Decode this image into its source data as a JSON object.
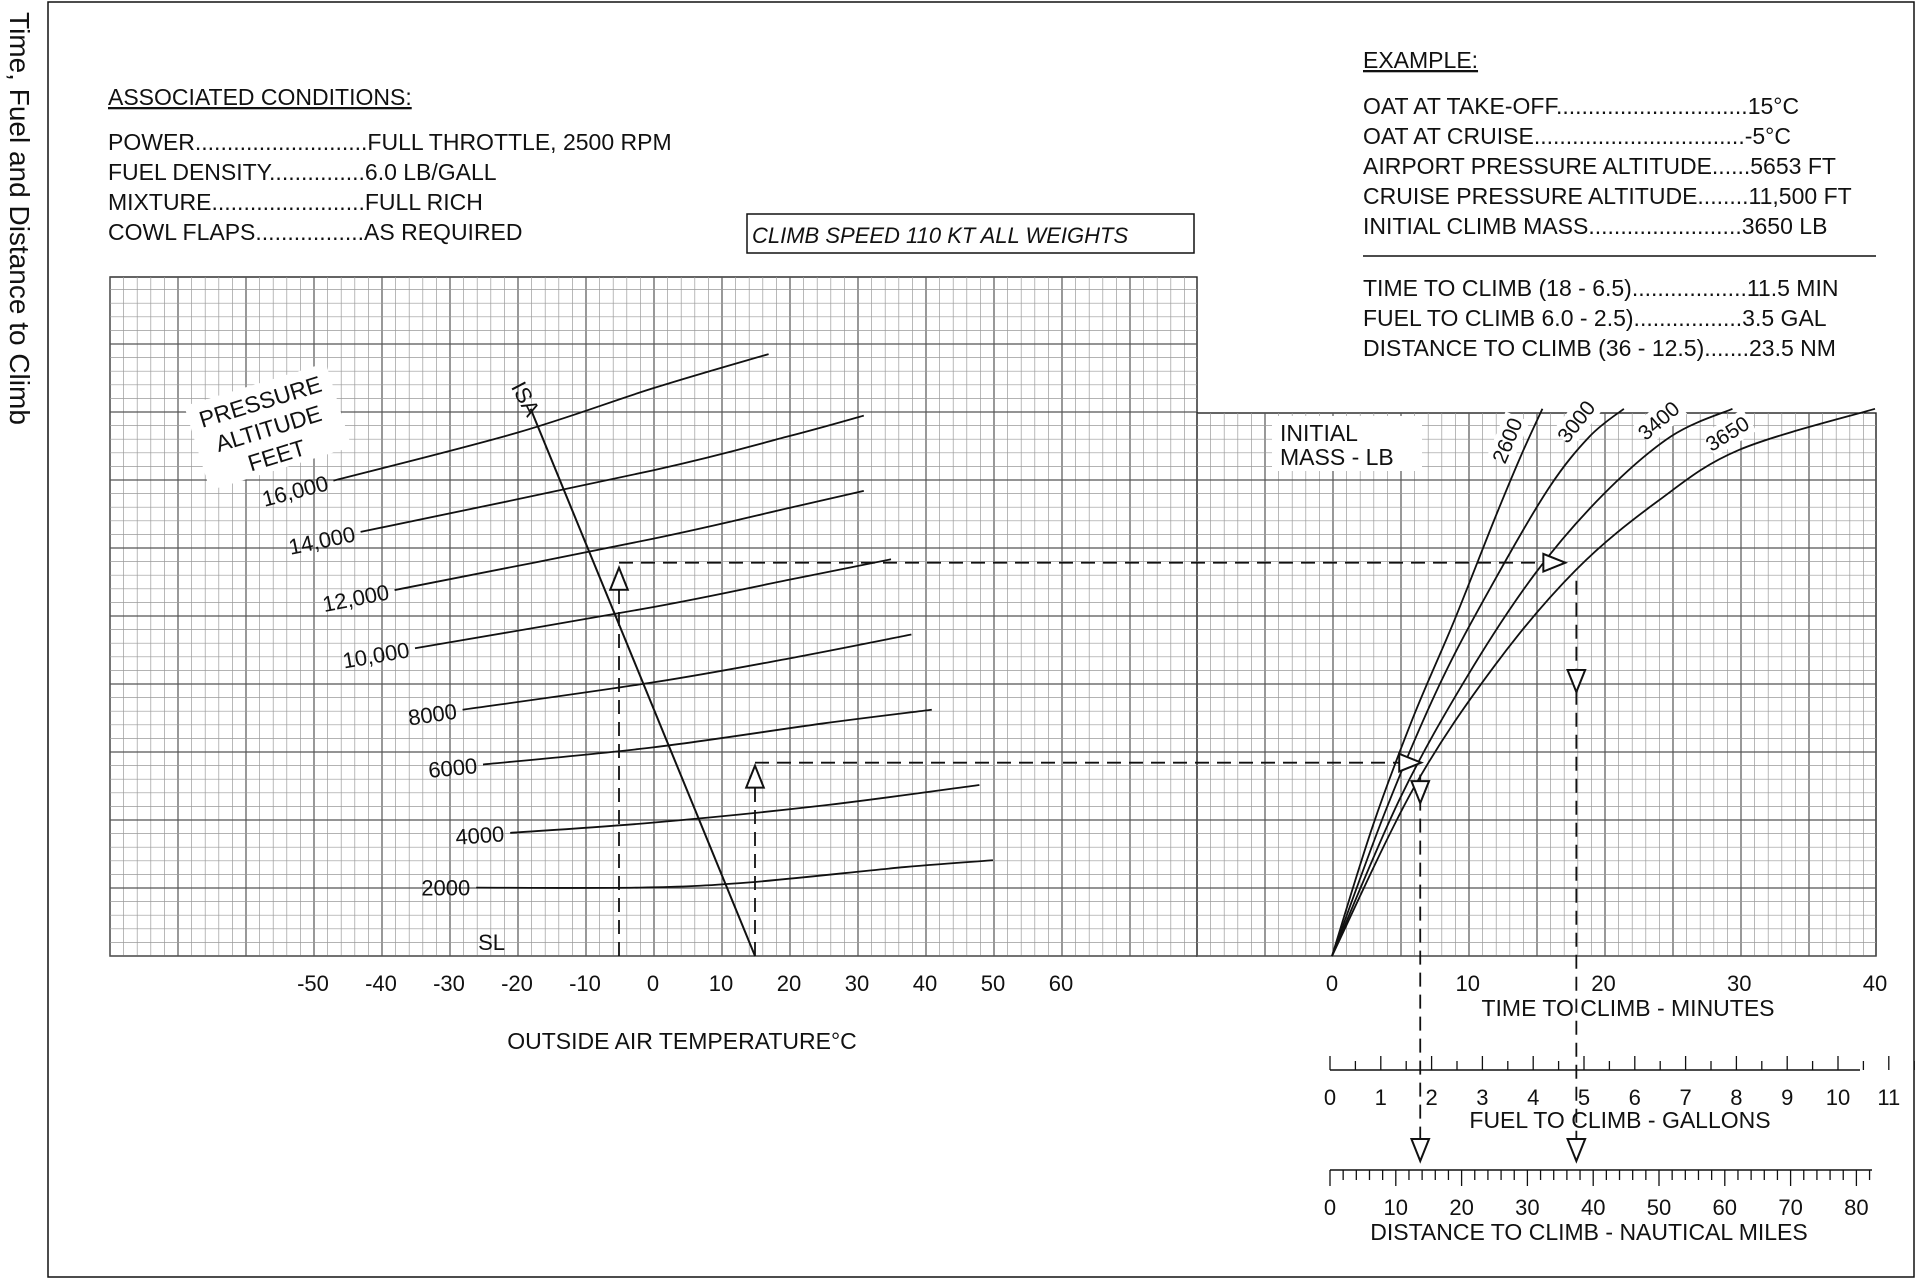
{
  "side_title": "Time, Fuel and Distance to Climb",
  "conditions": {
    "heading": "ASSOCIATED CONDITIONS:",
    "rows": [
      "POWER...........................FULL THROTTLE,  2500 RPM",
      "FUEL DENSITY...............6.0 LB/GALL",
      "MIXTURE........................FULL RICH",
      "COWL FLAPS.................AS REQUIRED"
    ]
  },
  "climb_speed": "CLIMB SPEED  110 KT ALL WEIGHTS",
  "example": {
    "heading": "EXAMPLE:",
    "given": [
      "OAT AT TAKE-OFF..............................15°C",
      "OAT AT CRUISE.................................-5°C",
      "AIRPORT PRESSURE ALTITUDE......5653 FT",
      "CRUISE PRESSURE ALTITUDE........11,500 FT",
      "INITIAL CLIMB MASS........................3650 LB"
    ],
    "results": [
      "TIME TO CLIMB (18 - 6.5)..................11.5 MIN",
      "FUEL TO CLIMB 6.0 - 2.5).................3.5 GAL",
      "DISTANCE TO CLIMB (36 - 12.5).......23.5 NM"
    ]
  },
  "chart_data": [
    {
      "type": "line",
      "panel": "left",
      "title_lines": [
        "PRESSURE",
        "ALTITUDE",
        "FEET"
      ],
      "isa_label": "ISA",
      "isa_line": [
        [
          -18,
          16000
        ],
        [
          15,
          0
        ]
      ],
      "xlabel": "OUTSIDE AIR TEMPERATURE°C",
      "xlim": [
        -65,
        95
      ],
      "ylim": [
        0,
        20000
      ],
      "xticks": [
        -50,
        -40,
        -30,
        -20,
        -10,
        0,
        10,
        20,
        30,
        40,
        50,
        60
      ],
      "tick_labels": [
        "-50",
        "-40",
        "-30",
        "-20",
        "-10",
        "0",
        "10",
        "20",
        "30",
        "40",
        "50",
        "60"
      ],
      "altitude_lines": [
        {
          "label": "SL",
          "points": []
        },
        {
          "label": "2000",
          "points": [
            [
              -26,
              2000
            ],
            [
              -2,
              2000
            ],
            [
              14,
              2150
            ],
            [
              37,
              2600
            ],
            [
              50,
              2800
            ]
          ]
        },
        {
          "label": "4000",
          "points": [
            [
              -21,
              3600
            ],
            [
              0,
              3900
            ],
            [
              25,
              4400
            ],
            [
              48,
              5000
            ]
          ]
        },
        {
          "label": "6000",
          "points": [
            [
              -25,
              5600
            ],
            [
              0,
              6100
            ],
            [
              25,
              6800
            ],
            [
              41,
              7200
            ]
          ]
        },
        {
          "label": "8000",
          "points": [
            [
              -28,
              7200
            ],
            [
              0,
              8000
            ],
            [
              20,
              8700
            ],
            [
              38,
              9400
            ]
          ]
        },
        {
          "label": "10,000",
          "points": [
            [
              -35,
              9000
            ],
            [
              0,
              10200
            ],
            [
              20,
              11000
            ],
            [
              35,
              11600
            ]
          ]
        },
        {
          "label": "12,000",
          "points": [
            [
              -38,
              10700
            ],
            [
              0,
              12200
            ],
            [
              20,
              13100
            ],
            [
              31,
              13600
            ]
          ]
        },
        {
          "label": "14,000",
          "points": [
            [
              -43,
              12400
            ],
            [
              0,
              14200
            ],
            [
              20,
              15200
            ],
            [
              31,
              15800
            ]
          ]
        },
        {
          "label": "16,000",
          "points": [
            [
              -47,
              13900
            ],
            [
              -20,
              15300
            ],
            [
              0,
              16600
            ],
            [
              17,
              17600
            ]
          ]
        }
      ]
    },
    {
      "type": "line",
      "panel": "right",
      "title_lines": [
        "INITIAL",
        "MASS - LB"
      ],
      "xlabel": "TIME  TO  CLIMB - MINUTES",
      "xlim": [
        0,
        40
      ],
      "ylim": [
        0,
        16000
      ],
      "xticks": [
        0,
        10,
        20,
        30,
        40
      ],
      "tick_labels": [
        "0",
        "10",
        "20",
        "30",
        "40"
      ],
      "series": [
        {
          "name": "2600",
          "points": [
            [
              0,
              0
            ],
            [
              3,
              3800
            ],
            [
              6,
              7000
            ],
            [
              9,
              9800
            ],
            [
              12,
              12800
            ],
            [
              14,
              14700
            ],
            [
              15.5,
              16000
            ]
          ]
        },
        {
          "name": "3000",
          "points": [
            [
              0,
              0
            ],
            [
              4,
              4300
            ],
            [
              8,
              8000
            ],
            [
              12,
              11000
            ],
            [
              16,
              13700
            ],
            [
              19,
              15200
            ],
            [
              21.5,
              16000
            ]
          ]
        },
        {
          "name": "3400",
          "points": [
            [
              0,
              0
            ],
            [
              5,
              4600
            ],
            [
              10,
              8200
            ],
            [
              15,
              11200
            ],
            [
              20,
              13500
            ],
            [
              25,
              15200
            ],
            [
              29.5,
              16000
            ]
          ]
        },
        {
          "name": "3650",
          "points": [
            [
              0,
              0
            ],
            [
              6,
              4900
            ],
            [
              12,
              8500
            ],
            [
              18,
              11300
            ],
            [
              24,
              13300
            ],
            [
              30,
              14800
            ],
            [
              40,
              16000
            ]
          ]
        }
      ]
    }
  ],
  "scales": {
    "fuel": {
      "label": "FUEL TO CLIMB - GALLONS",
      "ticks": [
        "0",
        "1",
        "2",
        "3",
        "4",
        "5",
        "6",
        "7",
        "8",
        "9",
        "10",
        "11"
      ]
    },
    "distance": {
      "label": "DISTANCE TO CLIMB - NAUTICAL MILES",
      "ticks": [
        "0",
        "10",
        "20",
        "30",
        "40",
        "50",
        "60",
        "70",
        "80"
      ]
    }
  },
  "example_path": {
    "takeoff_oat": 15,
    "takeoff_alt": 5653,
    "cruise_oat": -5,
    "cruise_alt": 11500,
    "time_start": 6.5,
    "time_end": 18,
    "fuel_start": 2.5,
    "fuel_end": 6.0,
    "dist_start": 12.5,
    "dist_end": 36
  }
}
